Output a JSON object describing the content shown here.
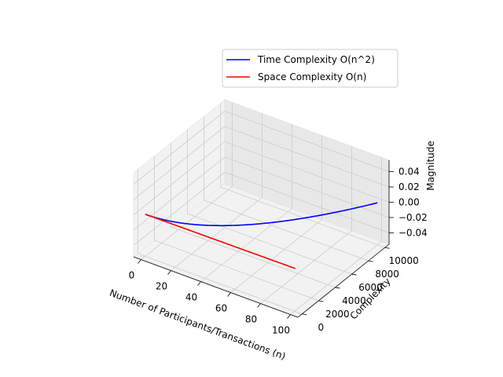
{
  "chart_data": {
    "type": "line",
    "projection": "3d",
    "x": [
      0,
      10,
      20,
      30,
      40,
      50,
      60,
      70,
      80,
      90,
      100
    ],
    "series": [
      {
        "name": "Time Complexity O(n^2)",
        "color": "#0000ff",
        "y": [
          0,
          100,
          400,
          900,
          1600,
          2500,
          3600,
          4900,
          6400,
          8100,
          10000
        ],
        "z": [
          0,
          0,
          0,
          0,
          0,
          0,
          0,
          0,
          0,
          0,
          0
        ]
      },
      {
        "name": "Space Complexity O(n)",
        "color": "#ff0000",
        "y": [
          0,
          10,
          20,
          30,
          40,
          50,
          60,
          70,
          80,
          90,
          100
        ],
        "z": [
          0,
          0,
          0,
          0,
          0,
          0,
          0,
          0,
          0,
          0,
          0
        ]
      }
    ],
    "xlabel": "Number of Participants/Transactions (n)",
    "ylabel": "Complexity",
    "zlabel": "Magnitude",
    "xlim": [
      -5,
      105
    ],
    "ylim": [
      -500,
      10500
    ],
    "zlim": [
      -0.055,
      0.055
    ],
    "x_ticks": [
      0,
      20,
      40,
      60,
      80,
      100
    ],
    "y_ticks": [
      0,
      2000,
      4000,
      6000,
      8000,
      10000
    ],
    "z_ticks": [
      -0.04,
      -0.02,
      0.0,
      0.02,
      0.04
    ],
    "x_tick_labels": [
      "0",
      "20",
      "40",
      "60",
      "80",
      "100"
    ],
    "y_tick_labels": [
      "0",
      "2000",
      "4000",
      "6000",
      "8000",
      "10000"
    ],
    "z_tick_labels": [
      "−0.04",
      "−0.02",
      "0.00",
      "0.02",
      "0.04"
    ],
    "grid": true,
    "legend": "top-right"
  }
}
